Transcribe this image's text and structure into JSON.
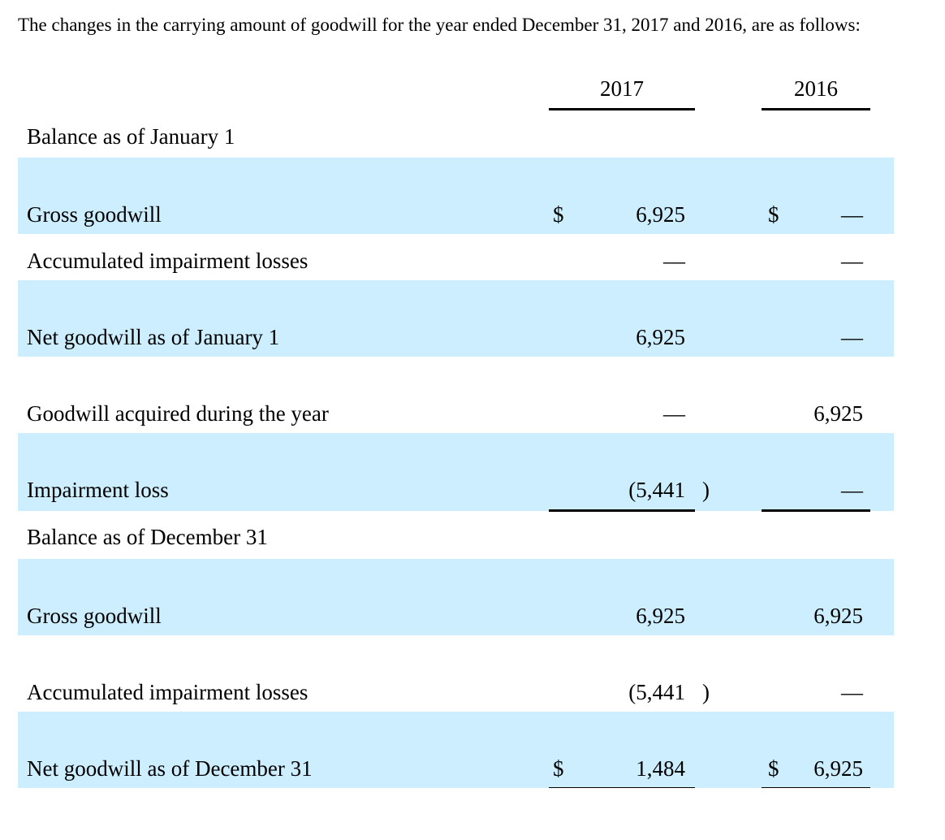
{
  "intro": "The changes in the carrying amount of goodwill for the year ended December 31, 2017 and 2016, are as follows:",
  "columns": {
    "c2017": "2017",
    "c2016": "2016"
  },
  "rows": [
    {
      "label": "Balance as of January 1",
      "cur17": "",
      "v17": "",
      "p17": "",
      "cur16": "",
      "v16": ""
    },
    {
      "label": "Gross goodwill",
      "cur17": "$",
      "v17": "6,925",
      "p17": "",
      "cur16": "$",
      "v16": "—"
    },
    {
      "label": "Accumulated impairment losses",
      "cur17": "",
      "v17": "—",
      "p17": "",
      "cur16": "",
      "v16": "—"
    },
    {
      "label": "Net goodwill as of January 1",
      "cur17": "",
      "v17": "6,925",
      "p17": "",
      "cur16": "",
      "v16": "—"
    },
    {
      "label": "Goodwill acquired during the year",
      "cur17": "",
      "v17": "—",
      "p17": "",
      "cur16": "",
      "v16": "6,925"
    },
    {
      "label": "Impairment loss",
      "cur17": "",
      "v17": "(5,441",
      "p17": ")",
      "cur16": "",
      "v16": "—"
    },
    {
      "label": "Balance as of December 31",
      "cur17": "",
      "v17": "",
      "p17": "",
      "cur16": "",
      "v16": ""
    },
    {
      "label": "Gross goodwill",
      "cur17": "",
      "v17": "6,925",
      "p17": "",
      "cur16": "",
      "v16": "6,925"
    },
    {
      "label": "Accumulated impairment losses",
      "cur17": "",
      "v17": "(5,441",
      "p17": ")",
      "cur16": "",
      "v16": "—"
    },
    {
      "label": "Net goodwill as of December 31",
      "cur17": "$",
      "v17": "1,484",
      "p17": "",
      "cur16": "$",
      "v16": "6,925"
    }
  ],
  "colors": {
    "shade": "#cceeff"
  }
}
